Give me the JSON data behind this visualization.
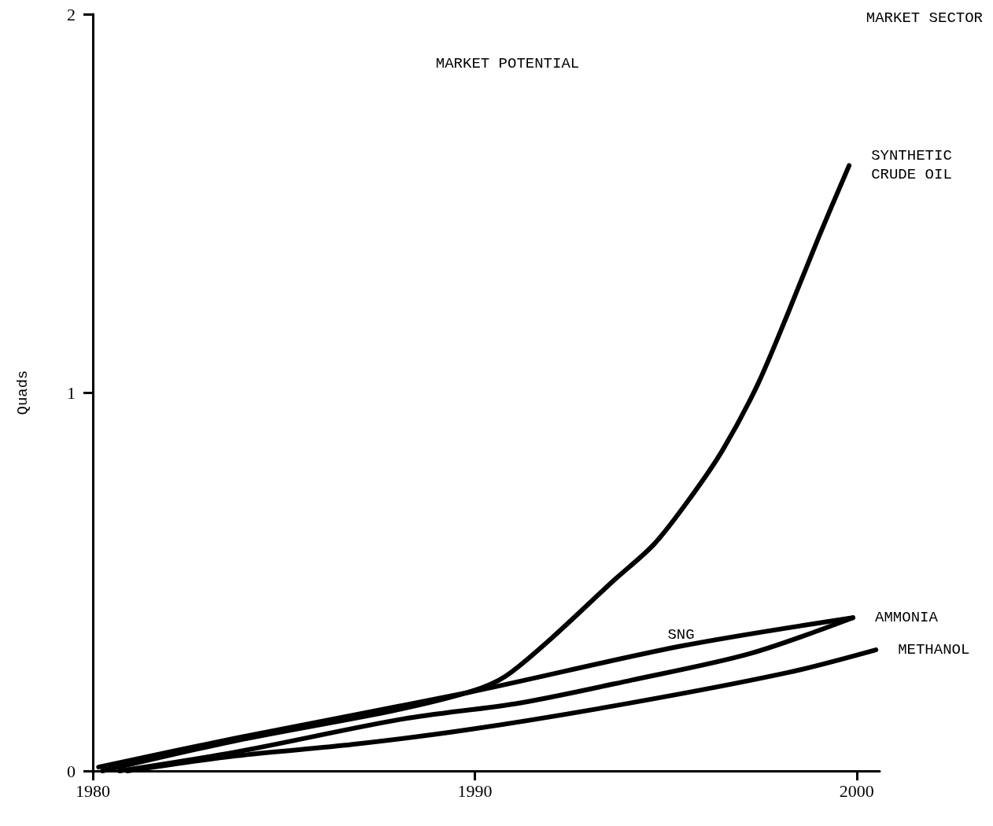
{
  "chart_data": {
    "type": "line",
    "title": "MARKET POTENTIAL",
    "subtitle": "MARKET SECTOR",
    "ylabel": "Quads",
    "xlim": [
      1980,
      2000.6
    ],
    "xticks": [
      1980,
      1990,
      2000
    ],
    "ylim": [
      0,
      2
    ],
    "yticks": [
      0,
      1,
      2
    ],
    "grid": false,
    "legend": false,
    "marker": "none",
    "line_style": "solid",
    "series": [
      {
        "name": "SYNTHETIC CRUDE OIL",
        "color": "#000000",
        "x": [
          1980.25,
          1983.75,
          1987.9,
          1989.9,
          1990.8,
          1992.0,
          1993.6,
          1994.7,
          1995.7,
          1996.5,
          1997.4,
          1998.2,
          1999.0,
          1999.8
        ],
        "values": [
          0.0,
          0.08,
          0.16,
          0.21,
          0.25,
          0.35,
          0.5,
          0.6,
          0.73,
          0.85,
          1.02,
          1.21,
          1.41,
          1.6
        ]
      },
      {
        "name": "SNG",
        "color": "#000000",
        "x": [
          1980.15,
          1983.75,
          1989.86,
          1995.4,
          1999.9
        ],
        "values": [
          0.01,
          0.087,
          0.208,
          0.33,
          0.405
        ]
      },
      {
        "name": "AMMONIA",
        "color": "#000000",
        "x": [
          1980.7,
          1983.75,
          1988.1,
          1991.2,
          1994.1,
          1997.2,
          1999.9
        ],
        "values": [
          0.0,
          0.05,
          0.137,
          0.18,
          0.24,
          0.31,
          0.405
        ]
      },
      {
        "name": "METHANOL",
        "color": "#000000",
        "x": [
          1980.9,
          1983.75,
          1986.8,
          1989.9,
          1994.1,
          1998.2,
          2000.5
        ],
        "values": [
          0.0,
          0.04,
          0.07,
          0.11,
          0.18,
          0.26,
          0.32
        ]
      }
    ]
  }
}
